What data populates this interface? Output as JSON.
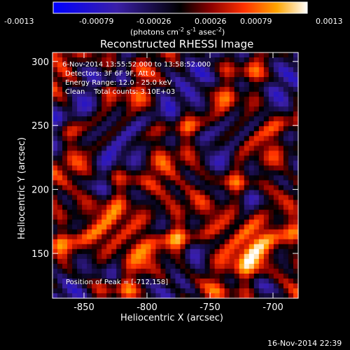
{
  "colorbar": {
    "ticks": [
      "-0.0013",
      "-0.00079",
      "-0.00026",
      "0.00026",
      "0.00079",
      "0.0013"
    ],
    "units_prefix": "(photons cm",
    "units_e1": "-2",
    "units_mid1": " s",
    "units_e2": "-1",
    "units_mid2": " asec",
    "units_e3": "-2",
    "units_suffix": ")",
    "range": [
      -0.0013,
      0.0013
    ]
  },
  "chart_data": {
    "type": "heatmap",
    "title": "Reconstructed RHESSI Image",
    "xlabel": "Heliocentric X (arcsec)",
    "ylabel": "Heliocentric Y (arcsec)",
    "xlim": [
      -875,
      -680
    ],
    "ylim": [
      115,
      307
    ],
    "xticks": [
      -850,
      -800,
      -750,
      -700
    ],
    "yticks": [
      150,
      200,
      250,
      300
    ],
    "annotations": [
      "6-Nov-2014 13:55:52.000 to 13:58:52.000",
      "Detectors: 3F 6F 9F, Att 0",
      "Energy Range: 12.0 - 25.0 keV",
      "Clean    Total counts: 3.10E+03"
    ],
    "peak_label": "Position of Peak = [-712,158]",
    "peak": [
      -712,
      158
    ]
  },
  "footer": {
    "timestamp": "16-Nov-2014 22:39"
  },
  "colors": {
    "background": "#000000",
    "text": "#ffffff",
    "colormap": [
      "#0000ff",
      "#3a1fa8",
      "#000000",
      "#8b0000",
      "#ff3000",
      "#ffa500",
      "#ffffff"
    ]
  }
}
